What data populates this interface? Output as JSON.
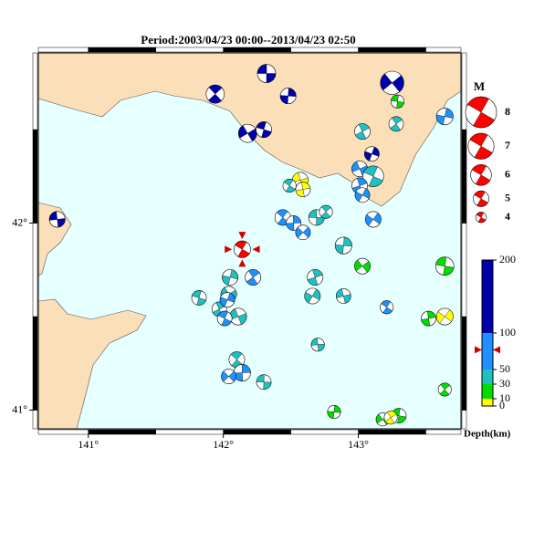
{
  "chart_data": {
    "type": "map",
    "title": "Period:2003/04/23 00:00--2013/04/23 02:50",
    "xlim": [
      140.63,
      143.76
    ],
    "ylim": [
      40.9,
      42.91
    ],
    "xticks": [
      {
        "value": 141,
        "label": "141°"
      },
      {
        "value": 142,
        "label": "142°"
      },
      {
        "value": 143,
        "label": "143°"
      }
    ],
    "yticks": [
      {
        "value": 41,
        "label": "41°"
      },
      {
        "value": 42,
        "label": "42°"
      }
    ],
    "land_color": "#fbdfb8",
    "sea_color": "#e6ffff",
    "magnitude_legend": {
      "title": "M",
      "values": [
        8,
        7,
        6,
        5,
        4
      ]
    },
    "depth_legend": {
      "title": "Depth(km)",
      "ylim": [
        0,
        200
      ],
      "ticks": [
        0,
        10,
        30,
        50,
        100,
        200
      ],
      "colors": [
        "#ffff00",
        "#00dd00",
        "#20c0c0",
        "#1e90ff",
        "#0000aa"
      ]
    },
    "latest": {
      "lon": 142.14,
      "lat": 41.86,
      "mag": 5.2,
      "depth": 77,
      "color": "#ff0000"
    },
    "events": {
      "lon": [
        142.32,
        141.94,
        142.48,
        143.25,
        143.29,
        143.28,
        143.64,
        142.18,
        142.3,
        143.03,
        143.1,
        143.01,
        143.11,
        143.01,
        143.03,
        142.57,
        142.49,
        142.59,
        143.11,
        140.77,
        142.44,
        142.52,
        142.59,
        142.69,
        142.76,
        142.89,
        143.03,
        143.64,
        142.22,
        142.05,
        142.04,
        141.82,
        141.97,
        142.03,
        142.11,
        142.01,
        142.68,
        142.66,
        142.89,
        143.21,
        143.52,
        143.64,
        142.7,
        142.1,
        142.14,
        142.04,
        142.3,
        143.64,
        142.82,
        143.18,
        143.3,
        143.24
      ],
      "lat": [
        42.8,
        42.69,
        42.68,
        42.75,
        42.65,
        42.53,
        42.57,
        42.48,
        42.5,
        42.49,
        42.37,
        42.29,
        42.25,
        42.2,
        42.15,
        42.23,
        42.2,
        42.18,
        42.02,
        42.02,
        42.03,
        42.0,
        41.95,
        42.03,
        42.06,
        41.88,
        41.77,
        41.77,
        41.71,
        41.71,
        41.62,
        41.6,
        41.54,
        41.59,
        41.5,
        41.49,
        41.71,
        41.61,
        41.61,
        41.55,
        41.49,
        41.5,
        41.35,
        41.27,
        41.2,
        41.18,
        41.15,
        41.11,
        40.99,
        40.95,
        40.97,
        40.96
      ],
      "mag": [
        5.5,
        5.5,
        5,
        6.5,
        4.5,
        4.8,
        5.2,
        5.5,
        5,
        5,
        4.8,
        5,
        6,
        5,
        4.8,
        5,
        4.5,
        4.8,
        5,
        5,
        5,
        4.8,
        4.8,
        5,
        4.5,
        5.2,
        5,
        5.5,
        5,
        5,
        5,
        4.8,
        4.8,
        4.8,
        5.2,
        4.8,
        5,
        5,
        4.8,
        4.5,
        4.8,
        5.2,
        4.5,
        5,
        5.2,
        4.8,
        4.8,
        4.5,
        4.5,
        4.5,
        4.8,
        4.5
      ],
      "depth": [
        120,
        130,
        120,
        150,
        20,
        40,
        70,
        110,
        110,
        40,
        120,
        60,
        40,
        60,
        60,
        5,
        40,
        8,
        70,
        100,
        70,
        70,
        70,
        40,
        40,
        40,
        20,
        20,
        70,
        40,
        40,
        40,
        40,
        60,
        40,
        60,
        40,
        40,
        40,
        70,
        20,
        8,
        40,
        40,
        60,
        60,
        40,
        20,
        20,
        20,
        20,
        5
      ]
    }
  }
}
